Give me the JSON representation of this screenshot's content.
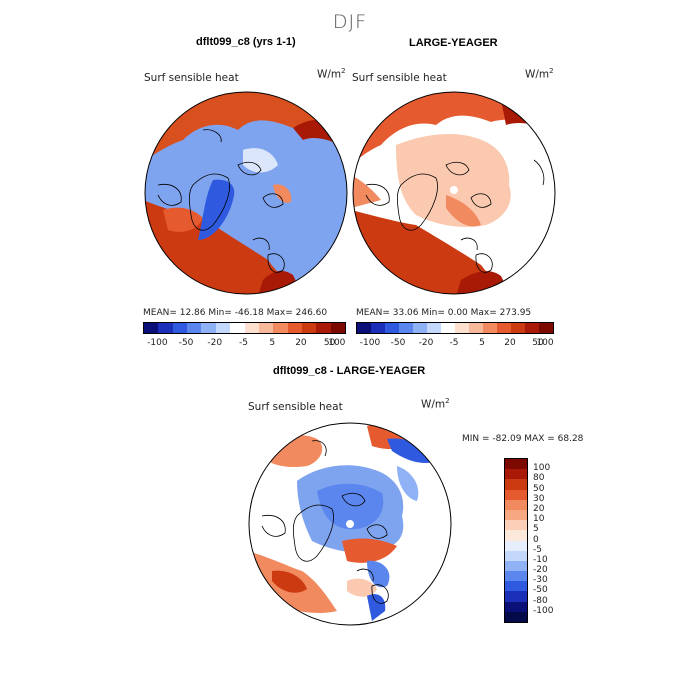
{
  "title": "DJF",
  "panels": [
    {
      "title": "dflt099_c8 (yrs 1-1)",
      "variable": "Surf sensible heat",
      "units": "W/m",
      "units_exp": "2",
      "stats": "MEAN=   12.86   Min=  -46.18   Max=  246.60"
    },
    {
      "title": "LARGE-YEAGER",
      "variable": "Surf sensible heat",
      "units": "W/m",
      "units_exp": "2",
      "stats": "MEAN=   33.06   Min=    0.00   Max=  273.95"
    },
    {
      "title": "dflt099_c8 - LARGE-YEAGER",
      "variable": "Surf sensible heat",
      "units": "W/m",
      "units_exp": "2",
      "stats": "MIN = -82.09  MAX =   68.28"
    }
  ],
  "top_colorbar": {
    "tick_labels": [
      "-100",
      "-50",
      "-20",
      "-5",
      "5",
      "20",
      "50",
      "100"
    ],
    "colors": [
      "#0b0f78",
      "#1c2fb8",
      "#2f5ae0",
      "#5a86ee",
      "#8fb2f6",
      "#c4d8fb",
      "#ffffff",
      "#fde0d0",
      "#f8b89a",
      "#f28a60",
      "#e65a30",
      "#cc3a12",
      "#a81a05",
      "#7c0a02"
    ]
  },
  "diff_colorbar": {
    "tick_labels": [
      "100",
      "80",
      "50",
      "30",
      "20",
      "10",
      "5",
      "0",
      "-5",
      "-10",
      "-20",
      "-30",
      "-50",
      "-80",
      "-100"
    ],
    "colors": [
      "#7c0a02",
      "#a81a05",
      "#cc3a12",
      "#e65a30",
      "#f28a60",
      "#f8a880",
      "#fcd0b8",
      "#fde9dc",
      "#e6eefc",
      "#c4d8fb",
      "#8fb2f6",
      "#5a86ee",
      "#2f5ae0",
      "#1c2fb8",
      "#0b0f78",
      "#050a4a"
    ]
  },
  "colors": {
    "land_mask": "#ffffff",
    "positive_strong": "#c8300e",
    "positive_mid": "#f08560",
    "positive_light": "#fbc9b0",
    "negative_mid": "#7fa4ef",
    "negative_strong": "#2f5ae0"
  }
}
